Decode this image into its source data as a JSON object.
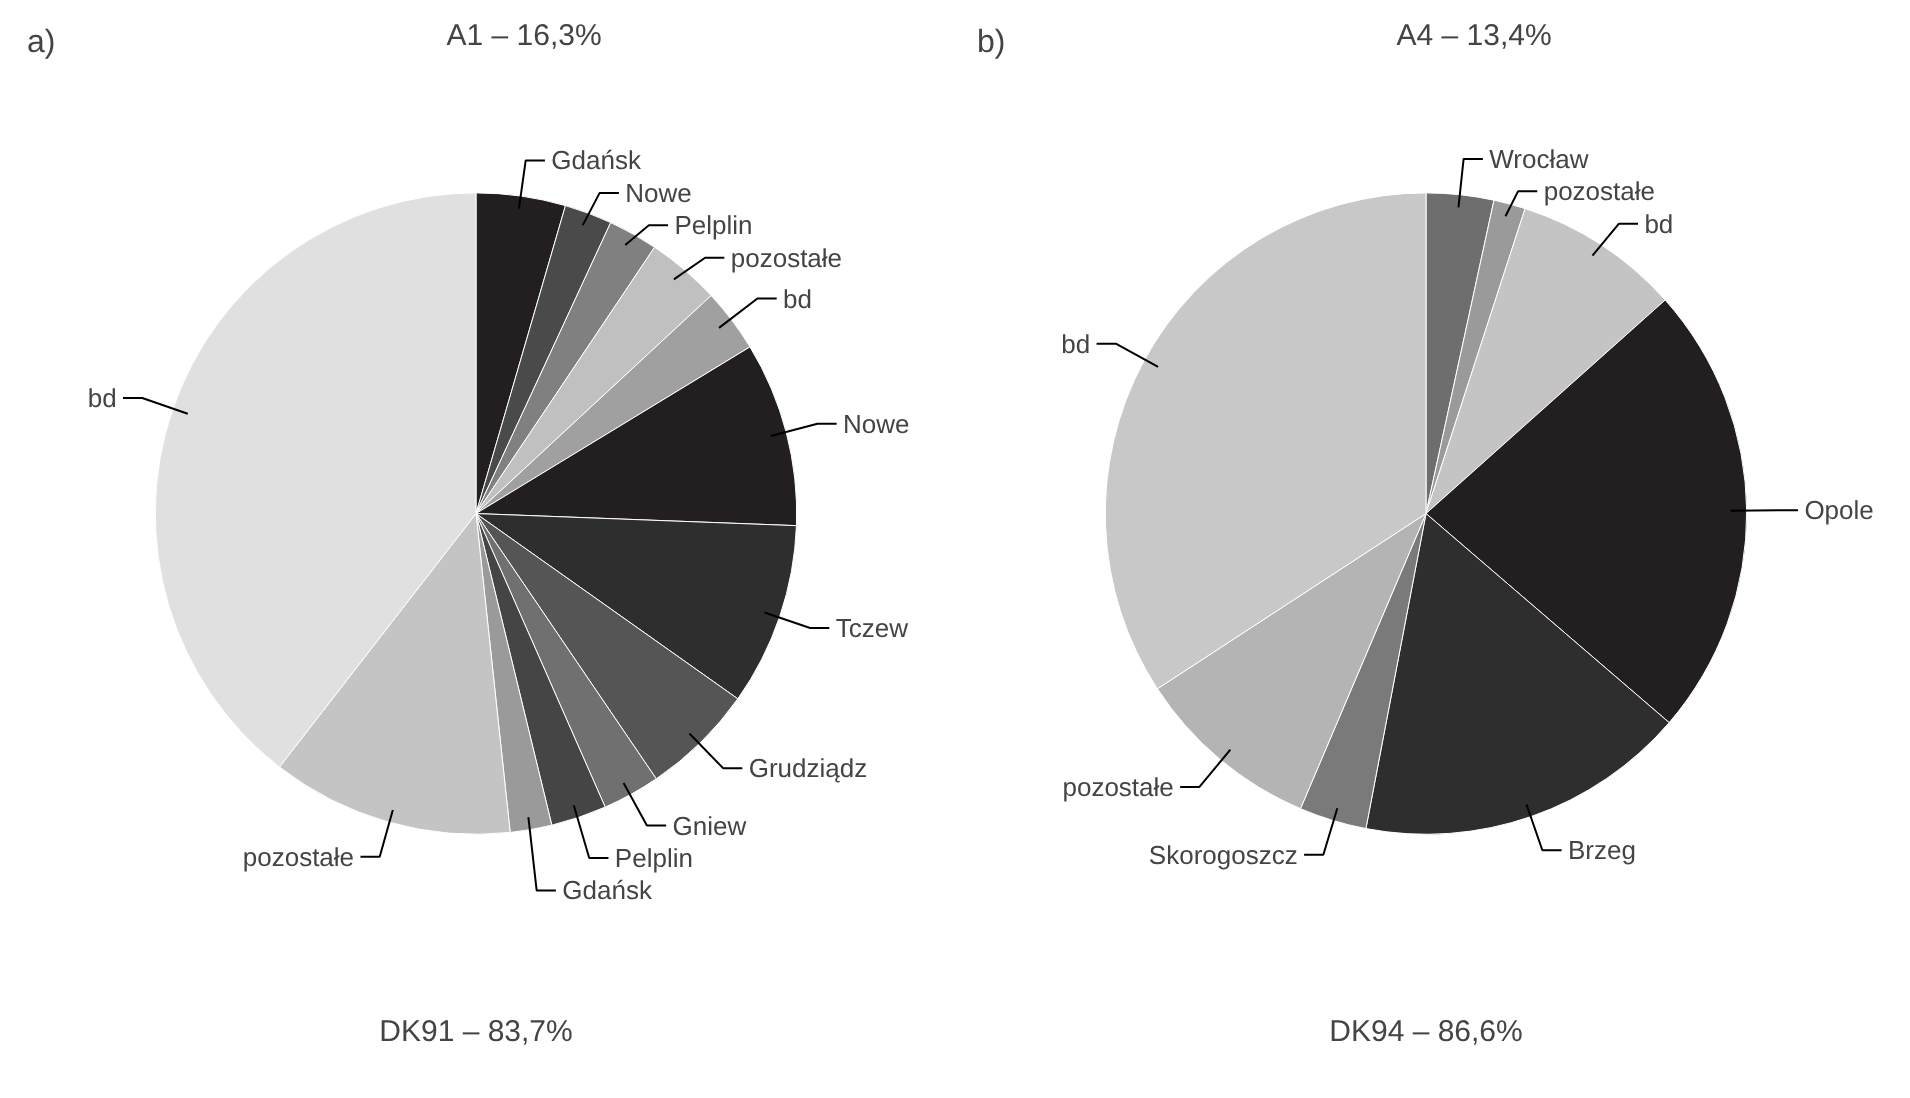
{
  "chart_data": [
    {
      "type": "pie",
      "title": "a)",
      "categories": [
        "Gdańsk",
        "Nowe",
        "Pelplin",
        "pozostałe",
        "bd",
        "Nowe",
        "Tczew",
        "Grudziądz",
        "Gniew",
        "Pelplin",
        "Gdańsk",
        "pozostałe",
        "bd"
      ],
      "values": [
        4.5,
        2.4,
        2.5,
        3.7,
        3.2,
        9.3,
        9.2,
        5.7,
        2.9,
        2.8,
        2.1,
        12.2,
        39.5
      ],
      "colors": [
        "#231f20",
        "#4a4a4a",
        "#808080",
        "#c0c0c0",
        "#a0a0a0",
        "#231f20",
        "#2e2e2e",
        "#555555",
        "#707070",
        "#454545",
        "#9a9a9a",
        "#c4c4c4",
        "#e0e0e0"
      ],
      "annotations": [
        "A1 – 16,3%",
        "DK91 – 83,7%"
      ]
    },
    {
      "type": "pie",
      "title": "b)",
      "categories": [
        "Wrocław",
        "pozostałe",
        "bd",
        "Opole",
        "Brzeg",
        "Skorogoszcz",
        "pozostałe",
        "bd"
      ],
      "values": [
        3.4,
        1.6,
        8.4,
        22.9,
        16.7,
        3.4,
        9.4,
        34.2
      ],
      "colors": [
        "#6e6e6e",
        "#9a9a9a",
        "#c4c4c4",
        "#231f20",
        "#2e2e2e",
        "#7a7a7a",
        "#b4b4b4",
        "#c8c8c8"
      ],
      "annotations": [
        "A4 – 13,4%",
        "DK94 – 86,6%"
      ]
    }
  ]
}
